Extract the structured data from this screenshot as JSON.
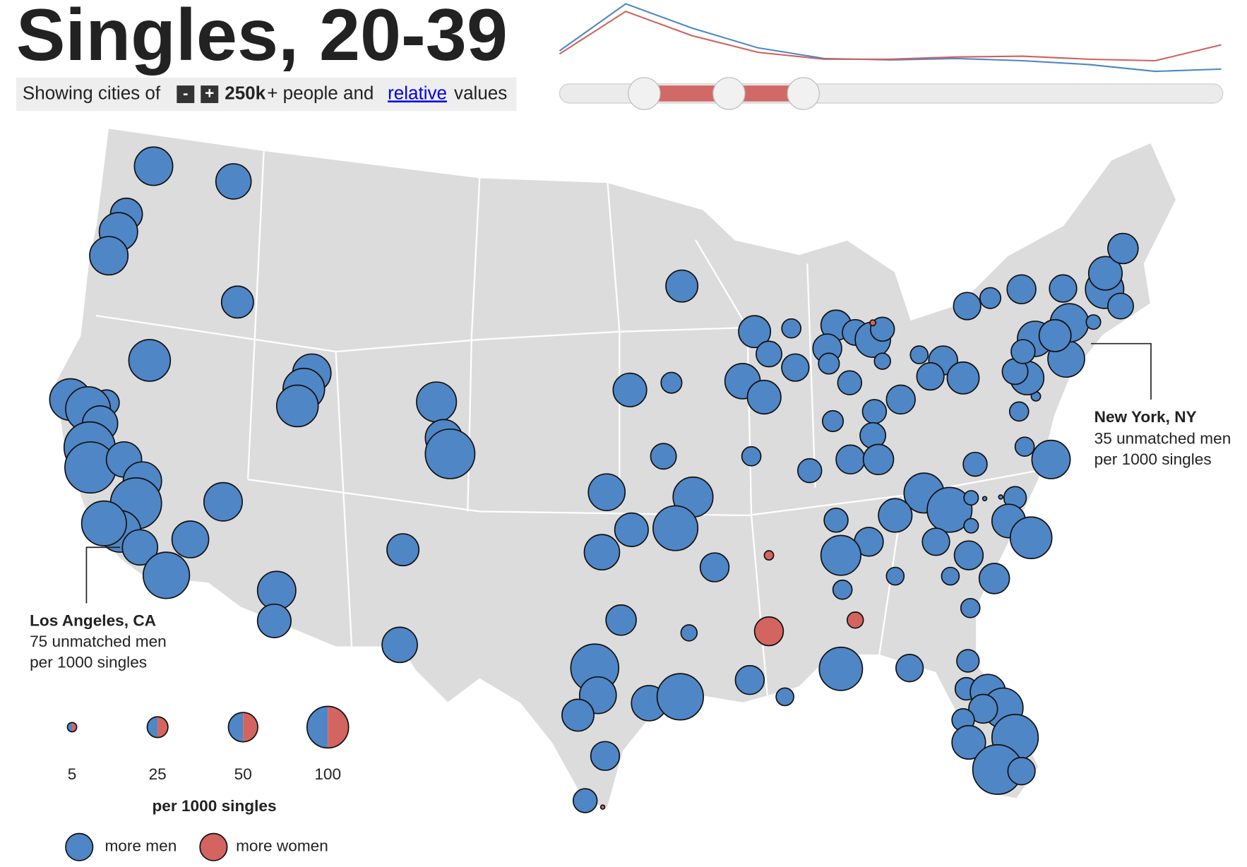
{
  "title": "Singles, 20-39",
  "controls": {
    "prefix": "Showing cities of",
    "decrease": "-",
    "increase": "+",
    "population": "250k",
    "middle": "+ people and",
    "mode": "relative",
    "suffix": "values"
  },
  "timeline": {
    "ylim": [
      0,
      100
    ],
    "series": [
      {
        "color": "#4a86c8",
        "values": [
          33,
          95,
          63,
          37,
          23,
          21,
          23,
          20,
          15,
          6,
          9
        ]
      },
      {
        "color": "#d0605c",
        "values": [
          29,
          85,
          53,
          31,
          22,
          22,
          25,
          26,
          22,
          20,
          41
        ]
      }
    ]
  },
  "map": {
    "markers": {
      "more_men": {
        "color": "#4f86c6",
        "values": [
          85,
          72,
          59,
          85,
          85,
          59,
          100,
          100,
          38,
          116,
          72,
          151,
          151,
          72,
          85,
          151,
          100,
          116,
          72,
          124,
          78,
          85,
          85,
          100,
          100,
          92,
          78,
          142,
          85,
          65,
          59,
          72,
          65,
          25,
          38,
          78,
          65,
          72,
          92,
          116,
          48,
          53,
          133,
          78,
          59,
          72,
          124,
          48,
          33,
          15,
          59,
          59,
          38,
          21,
          43,
          72,
          65,
          53,
          48,
          25,
          38,
          72,
          33,
          15,
          33,
          25,
          33,
          48,
          38,
          48,
          53,
          33,
          21,
          18,
          48,
          43,
          59,
          92,
          116,
          65,
          33,
          48,
          92,
          43,
          48,
          12,
          1,
          1,
          12,
          29,
          65,
          100,
          33,
          21,
          85,
          53,
          18,
          18,
          21,
          21,
          48,
          18,
          108,
          43,
          29,
          29,
          72,
          92,
          48,
          29,
          65,
          124,
          142,
          43,
          21,
          5,
          78,
          65,
          38,
          72,
          85,
          12,
          85,
          65,
          38,
          53,
          43,
          48,
          25,
          43,
          59,
          33
        ]
      },
      "more_women": {
        "color": "#d4645f",
        "values": [
          2,
          1,
          5,
          48,
          15
        ]
      }
    }
  },
  "annotations": [
    {
      "city": "New York, NY",
      "value_text": "35 unmatched men",
      "unit": "per 1000 singles"
    },
    {
      "city": "Los Angeles, CA",
      "value_text": "75 unmatched men",
      "unit": "per 1000 singles"
    }
  ],
  "legend": {
    "sizes": [
      5,
      25,
      50,
      100
    ],
    "size_title": "per 1000 singles",
    "colors": [
      {
        "label": "more men",
        "color": "#4f86c6"
      },
      {
        "label": "more women",
        "color": "#d4645f"
      }
    ]
  }
}
